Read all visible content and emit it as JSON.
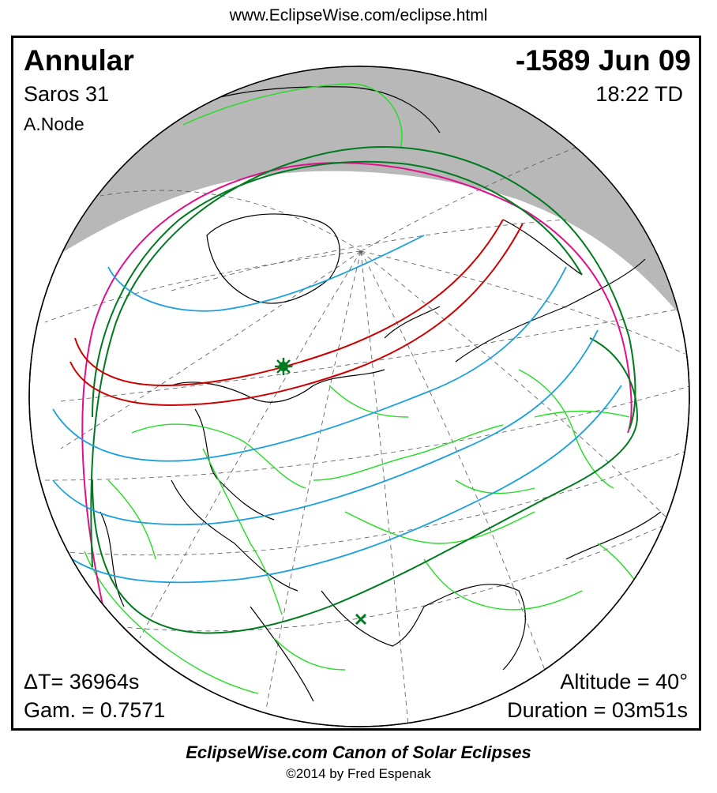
{
  "header": {
    "url": "www.EclipseWise.com/eclipse.html"
  },
  "eclipse": {
    "type": "Annular",
    "date": "-1589 Jun 09",
    "saros": "Saros  31",
    "time": "18:22 TD",
    "node": "A.Node",
    "delta_t": "ΔT=  36964s",
    "gamma": "Gam. = 0.7571",
    "altitude": "Altitude = 40°",
    "duration": "Duration = 03m51s"
  },
  "footer": {
    "title": "EclipseWise.com Canon of Solar Eclipses",
    "copyright": "©2014 by Fred Espenak"
  },
  "colors": {
    "night": "#b8b8b8",
    "central_path": "#cc0000",
    "penumbral_limit": "#007a1e",
    "rise_set": "#e0108c",
    "times": "#1aa0dd",
    "borders": "#22dd22",
    "coast": "#000000"
  },
  "markers": {
    "greatest_eclipse": "star-marker",
    "subsolar": "x-marker"
  }
}
